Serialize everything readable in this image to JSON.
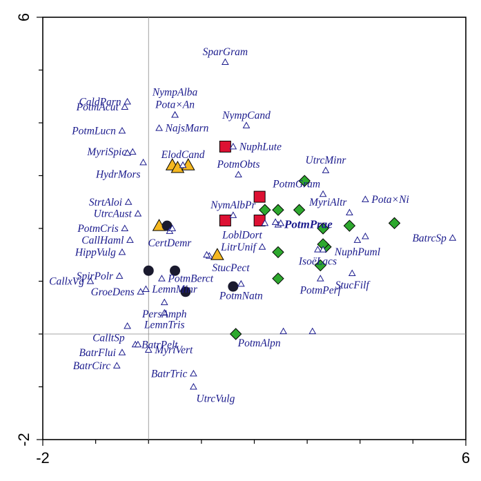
{
  "chart_data": {
    "type": "scatter",
    "xlim": [
      -2,
      6
    ],
    "ylim": [
      -2,
      6
    ],
    "x_ticks": [
      "-2",
      "6"
    ],
    "y_ticks": [
      "6",
      "-2"
    ],
    "zero_lines": true,
    "species": [
      {
        "label": "SparGram",
        "x": 1.45,
        "y": 5.15,
        "label_pos": "above"
      },
      {
        "label": "CaldParn",
        "x": -0.4,
        "y": 4.4,
        "label_pos": "left"
      },
      {
        "label": "PotmAcut",
        "x": -0.45,
        "y": 4.3,
        "label_pos": "left"
      },
      {
        "label": "Pota×An",
        "x": 0.5,
        "y": 4.15,
        "label_pos": "above"
      },
      {
        "label": "NympAlba",
        "x": 0.5,
        "y": 4.15,
        "label_pos": "above2"
      },
      {
        "label": "PotmLucn",
        "x": -0.5,
        "y": 3.85,
        "label_pos": "left"
      },
      {
        "label": "NajsMarn",
        "x": 0.2,
        "y": 3.9,
        "label_pos": "right"
      },
      {
        "label": "NympCand",
        "x": 1.85,
        "y": 3.95,
        "label_pos": "above"
      },
      {
        "label": "MyriSpic",
        "x": -0.3,
        "y": 3.45,
        "label_pos": "left"
      },
      {
        "label": "HydrMors",
        "x": -0.1,
        "y": 3.25,
        "label_pos": "below-left"
      },
      {
        "label": "PotmObts",
        "x": 1.7,
        "y": 3.02,
        "label_pos": "above"
      },
      {
        "label": "UtrcMinr",
        "x": 3.35,
        "y": 3.1,
        "label_pos": "above"
      },
      {
        "label": "PotmGram",
        "x": 3.3,
        "y": 2.65,
        "label_pos": "above-left"
      },
      {
        "label": "Pota×Ni",
        "x": 4.1,
        "y": 2.55,
        "label_pos": "right"
      },
      {
        "label": "StrtAloi",
        "x": -0.38,
        "y": 2.5,
        "label_pos": "left"
      },
      {
        "label": "UtrcAust",
        "x": -0.2,
        "y": 2.28,
        "label_pos": "left"
      },
      {
        "label": "MyriAltr",
        "x": 3.8,
        "y": 2.3,
        "label_pos": "above-left"
      },
      {
        "label": "LoblDort",
        "x": 2.2,
        "y": 2.1,
        "label_pos": "below-left"
      },
      {
        "label": "PotmPrae",
        "x": 2.45,
        "y": 2.07,
        "label_pos": "right",
        "bold": true
      },
      {
        "label": "PotmCris",
        "x": -0.45,
        "y": 2.0,
        "label_pos": "left"
      },
      {
        "label": "BatrcSp",
        "x": 5.75,
        "y": 1.82,
        "label_pos": "left"
      },
      {
        "label": "CallHaml",
        "x": -0.35,
        "y": 1.78,
        "label_pos": "left"
      },
      {
        "label": "NuphPuml",
        "x": 3.95,
        "y": 1.78,
        "label_pos": "below"
      },
      {
        "label": "LitrUnif",
        "x": 2.15,
        "y": 1.65,
        "label_pos": "left"
      },
      {
        "label": "IsoëLacs",
        "x": 3.2,
        "y": 1.6,
        "label_pos": "below"
      },
      {
        "label": "HippVulg",
        "x": -0.5,
        "y": 1.55,
        "label_pos": "left"
      },
      {
        "label": "StucPect",
        "x": 1.15,
        "y": 1.48,
        "label_pos": "below-right"
      },
      {
        "label": "StucFilf",
        "x": 3.85,
        "y": 1.15,
        "label_pos": "below"
      },
      {
        "label": "SpirPolr",
        "x": -0.55,
        "y": 1.1,
        "label_pos": "left"
      },
      {
        "label": "PotmBerct",
        "x": 0.25,
        "y": 1.05,
        "label_pos": "right"
      },
      {
        "label": "CallxVg",
        "x": -1.1,
        "y": 1.0,
        "label_pos": "left"
      },
      {
        "label": "LemnMinr",
        "x": -0.05,
        "y": 0.85,
        "label_pos": "right"
      },
      {
        "label": "GroeDens",
        "x": -0.15,
        "y": 0.8,
        "label_pos": "left"
      },
      {
        "label": "PersAmph",
        "x": 0.3,
        "y": 0.6,
        "label_pos": "below"
      },
      {
        "label": "LemnTris",
        "x": 0.3,
        "y": 0.4,
        "label_pos": "below"
      },
      {
        "label": "CalltSp",
        "x": -0.4,
        "y": 0.15,
        "label_pos": "below-left"
      },
      {
        "label": "PotmAlpn",
        "x": 2.55,
        "y": 0.05,
        "label_pos": "below-left"
      },
      {
        "label": "BatrPelt",
        "x": -0.25,
        "y": -0.2,
        "label_pos": "right"
      },
      {
        "label": "BatrFlui",
        "x": -0.5,
        "y": -0.35,
        "label_pos": "left"
      },
      {
        "label": "MyriVert",
        "x": 0.0,
        "y": -0.3,
        "label_pos": "right"
      },
      {
        "label": "BatrCirc",
        "x": -0.6,
        "y": -0.6,
        "label_pos": "left"
      },
      {
        "label": "BatrTric",
        "x": 0.85,
        "y": -0.75,
        "label_pos": "left"
      },
      {
        "label": "UtrcVulg",
        "x": 0.85,
        "y": -1.0,
        "label_pos": "below-right"
      },
      {
        "label": "ElodCand",
        "x": 0.65,
        "y": 3.2,
        "label_pos": "above"
      },
      {
        "label": "CertDemr",
        "x": 0.4,
        "y": 1.95,
        "label_pos": "below"
      },
      {
        "label": "NymAlbPr",
        "x": 1.6,
        "y": 2.25,
        "label_pos": "above"
      },
      {
        "label": "NuphLute",
        "x": 1.6,
        "y": 3.55,
        "label_pos": "right"
      },
      {
        "label": "PotmNatn",
        "x": 1.75,
        "y": 0.95,
        "label_pos": "below"
      },
      {
        "label": "PotmPerf",
        "x": 3.25,
        "y": 1.05,
        "label_pos": "below"
      }
    ],
    "sites": [
      {
        "group": "red-square",
        "x": 1.45,
        "y": 3.55
      },
      {
        "group": "red-square",
        "x": 2.1,
        "y": 2.6
      },
      {
        "group": "red-square",
        "x": 1.45,
        "y": 2.15
      },
      {
        "group": "red-square",
        "x": 2.1,
        "y": 2.15
      },
      {
        "group": "green-diamond",
        "x": 2.95,
        "y": 2.9
      },
      {
        "group": "green-diamond",
        "x": 2.2,
        "y": 2.35
      },
      {
        "group": "green-diamond",
        "x": 2.45,
        "y": 2.35
      },
      {
        "group": "green-diamond",
        "x": 2.85,
        "y": 2.35
      },
      {
        "group": "green-diamond",
        "x": 3.3,
        "y": 2.0
      },
      {
        "group": "green-diamond",
        "x": 3.8,
        "y": 2.05
      },
      {
        "group": "green-diamond",
        "x": 4.65,
        "y": 2.1
      },
      {
        "group": "green-diamond",
        "x": 3.35,
        "y": 1.65
      },
      {
        "group": "green-diamond",
        "x": 3.3,
        "y": 1.7
      },
      {
        "group": "green-diamond",
        "x": 2.45,
        "y": 1.55
      },
      {
        "group": "green-diamond",
        "x": 3.25,
        "y": 1.3
      },
      {
        "group": "green-diamond",
        "x": 2.45,
        "y": 1.05
      },
      {
        "group": "green-diamond",
        "x": 1.65,
        "y": 0.0
      },
      {
        "group": "yellow-triangle",
        "x": 0.45,
        "y": 3.2
      },
      {
        "group": "yellow-triangle",
        "x": 0.55,
        "y": 3.15
      },
      {
        "group": "yellow-triangle",
        "x": 0.75,
        "y": 3.2
      },
      {
        "group": "yellow-triangle",
        "x": 0.2,
        "y": 2.05
      },
      {
        "group": "yellow-triangle",
        "x": 1.3,
        "y": 1.5
      },
      {
        "group": "black-circle",
        "x": 0.0,
        "y": 1.2
      },
      {
        "group": "black-circle",
        "x": 0.35,
        "y": 2.05
      },
      {
        "group": "black-circle",
        "x": 0.5,
        "y": 1.2
      },
      {
        "group": "black-circle",
        "x": 0.7,
        "y": 0.8
      },
      {
        "group": "black-circle",
        "x": 1.6,
        "y": 0.9
      }
    ],
    "extra_species_points": [
      {
        "x": -0.4,
        "y": 3.43
      },
      {
        "x": 0.45,
        "y": 2.0
      },
      {
        "x": 2.5,
        "y": 2.1
      },
      {
        "x": 2.4,
        "y": 2.12
      },
      {
        "x": 3.3,
        "y": 1.6
      },
      {
        "x": 4.1,
        "y": 1.85
      },
      {
        "x": 1.1,
        "y": 1.5
      },
      {
        "x": 3.1,
        "y": 0.05
      },
      {
        "x": -0.2,
        "y": -0.2
      }
    ],
    "colors": {
      "red-square": "#dd1133",
      "green-diamond": "#2ea82e",
      "yellow-triangle": "#f5b820",
      "black-circle": "#1a1a2e",
      "species": "#1a1a8c",
      "zero_line": "#888888"
    }
  }
}
